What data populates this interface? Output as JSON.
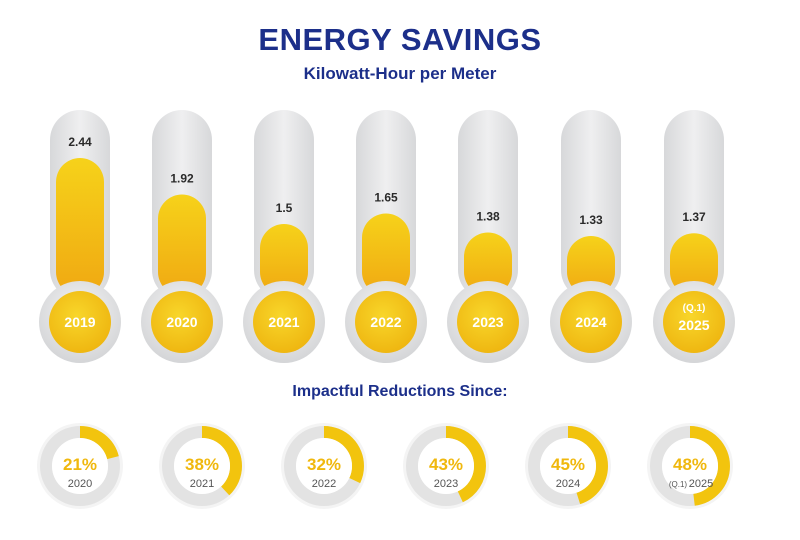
{
  "chart_data": [
    {
      "type": "bar",
      "title": "ENERGY SAVINGS",
      "ylabel": "Kilowatt-Hour per Meter",
      "categories": [
        {
          "label": "2019",
          "prefix": ""
        },
        {
          "label": "2020",
          "prefix": ""
        },
        {
          "label": "2021",
          "prefix": ""
        },
        {
          "label": "2022",
          "prefix": ""
        },
        {
          "label": "2023",
          "prefix": ""
        },
        {
          "label": "2024",
          "prefix": ""
        },
        {
          "label": "2025",
          "prefix": "(Q.1)"
        }
      ],
      "values": [
        2.44,
        1.92,
        1.5,
        1.65,
        1.38,
        1.33,
        1.37
      ],
      "value_labels": [
        "2.44",
        "1.92",
        "1.5",
        "1.65",
        "1.38",
        "1.33",
        "1.37"
      ],
      "ylim": [
        0,
        3
      ]
    },
    {
      "type": "pie",
      "title": "Impactful Reductions Since:",
      "items": [
        {
          "percent": 21,
          "label": "21%",
          "year": "2020",
          "prefix": ""
        },
        {
          "percent": 38,
          "label": "38%",
          "year": "2021",
          "prefix": ""
        },
        {
          "percent": 32,
          "label": "32%",
          "year": "2022",
          "prefix": ""
        },
        {
          "percent": 43,
          "label": "43%",
          "year": "2023",
          "prefix": ""
        },
        {
          "percent": 45,
          "label": "45%",
          "year": "2024",
          "prefix": ""
        },
        {
          "percent": 48,
          "label": "48%",
          "year": "2025",
          "prefix": "(Q.1)"
        }
      ]
    }
  ],
  "colors": {
    "title": "#1c2f8a",
    "bar_top": "#f6d21a",
    "bar_bottom": "#f0a812",
    "tube": "#e1e2e4",
    "ring_track": "#e3e3e3",
    "ring_fill": "#f2c40e",
    "value_text": "#2a2a2a",
    "year_text": "#555555"
  }
}
